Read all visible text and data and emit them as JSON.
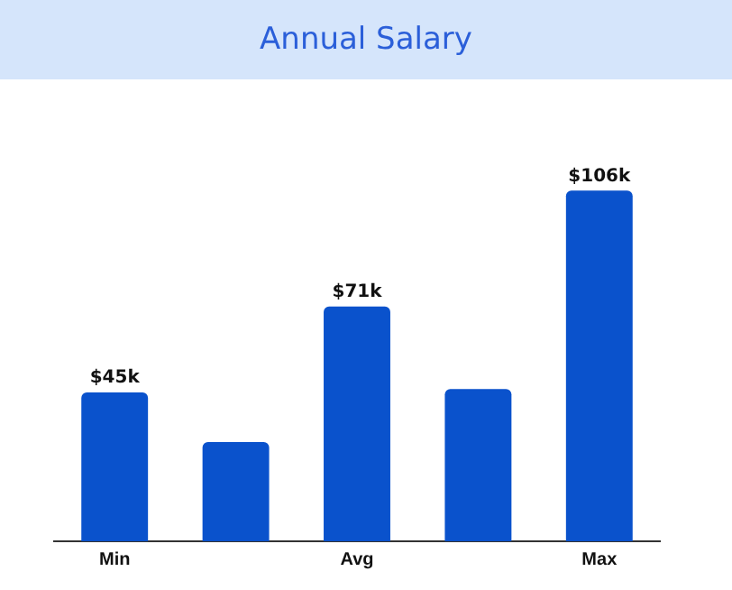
{
  "chart_data": {
    "type": "bar",
    "title": "Annual Salary",
    "categories": [
      "Min",
      null,
      "Avg",
      null,
      "Max"
    ],
    "values": [
      45,
      30,
      71,
      46,
      106
    ],
    "value_labels": [
      "$45k",
      null,
      "$71k",
      null,
      "$106k"
    ],
    "color": "#0a52cc",
    "grid": false,
    "legend": false,
    "tick_labels": "x"
  }
}
